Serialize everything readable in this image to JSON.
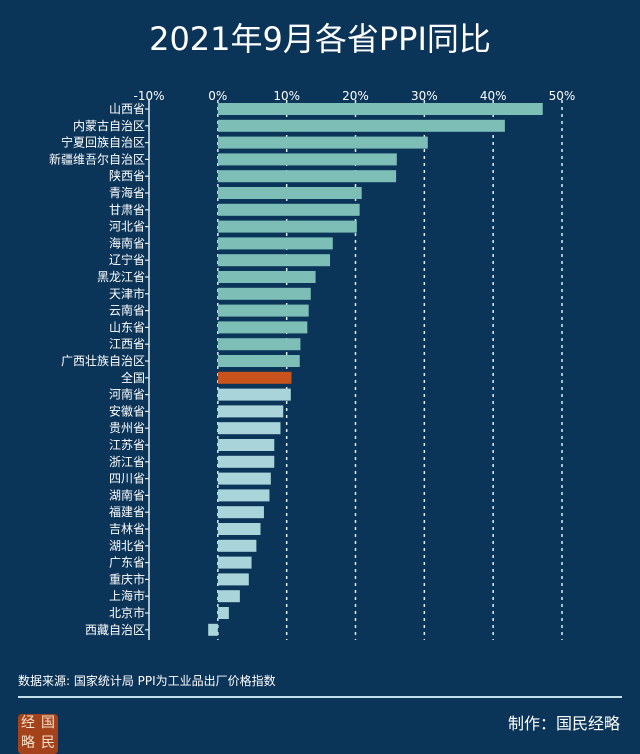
{
  "chart_data": {
    "type": "bar",
    "orientation": "horizontal",
    "title": "2021年9月各省PPI同比",
    "xlim": [
      -10,
      50
    ],
    "xticks": [
      "-10%",
      "0%",
      "10%",
      "20%",
      "30%",
      "40%",
      "50%"
    ],
    "xtick_values": [
      -10,
      0,
      10,
      20,
      30,
      40,
      50
    ],
    "grid": "vertical dashed",
    "categories": [
      "山西省",
      "内蒙古自治区",
      "宁夏回族自治区",
      "新疆维吾尔自治区",
      "陕西省",
      "青海省",
      "甘肃省",
      "河北省",
      "海南省",
      "辽宁省",
      "黑龙江省",
      "天津市",
      "云南省",
      "山东省",
      "江西省",
      "广西壮族自治区",
      "全国",
      "河南省",
      "安徽省",
      "贵州省",
      "江苏省",
      "浙江省",
      "四川省",
      "湖南省",
      "福建省",
      "吉林省",
      "湖北省",
      "广东省",
      "重庆市",
      "上海市",
      "北京市",
      "西藏自治区"
    ],
    "values": [
      47.2,
      41.7,
      30.5,
      26.0,
      25.9,
      20.9,
      20.6,
      20.2,
      16.7,
      16.3,
      14.2,
      13.5,
      13.2,
      13.0,
      12.0,
      11.9,
      10.7,
      10.6,
      9.5,
      9.1,
      8.2,
      8.2,
      7.7,
      7.5,
      6.7,
      6.2,
      5.6,
      4.9,
      4.5,
      3.2,
      1.6,
      -1.4
    ],
    "highlight": "全国",
    "colors": {
      "bar_upper": "#7dbfb6",
      "bar_lower": "#a9d4d9",
      "highlight": "#c9531c",
      "background": "#0b3459"
    }
  },
  "footer": {
    "source": "数据来源: 国家统计局  PPI为工业品出厂价格指数",
    "maker": "制作：国民经略",
    "logo_text": "经国略民"
  }
}
